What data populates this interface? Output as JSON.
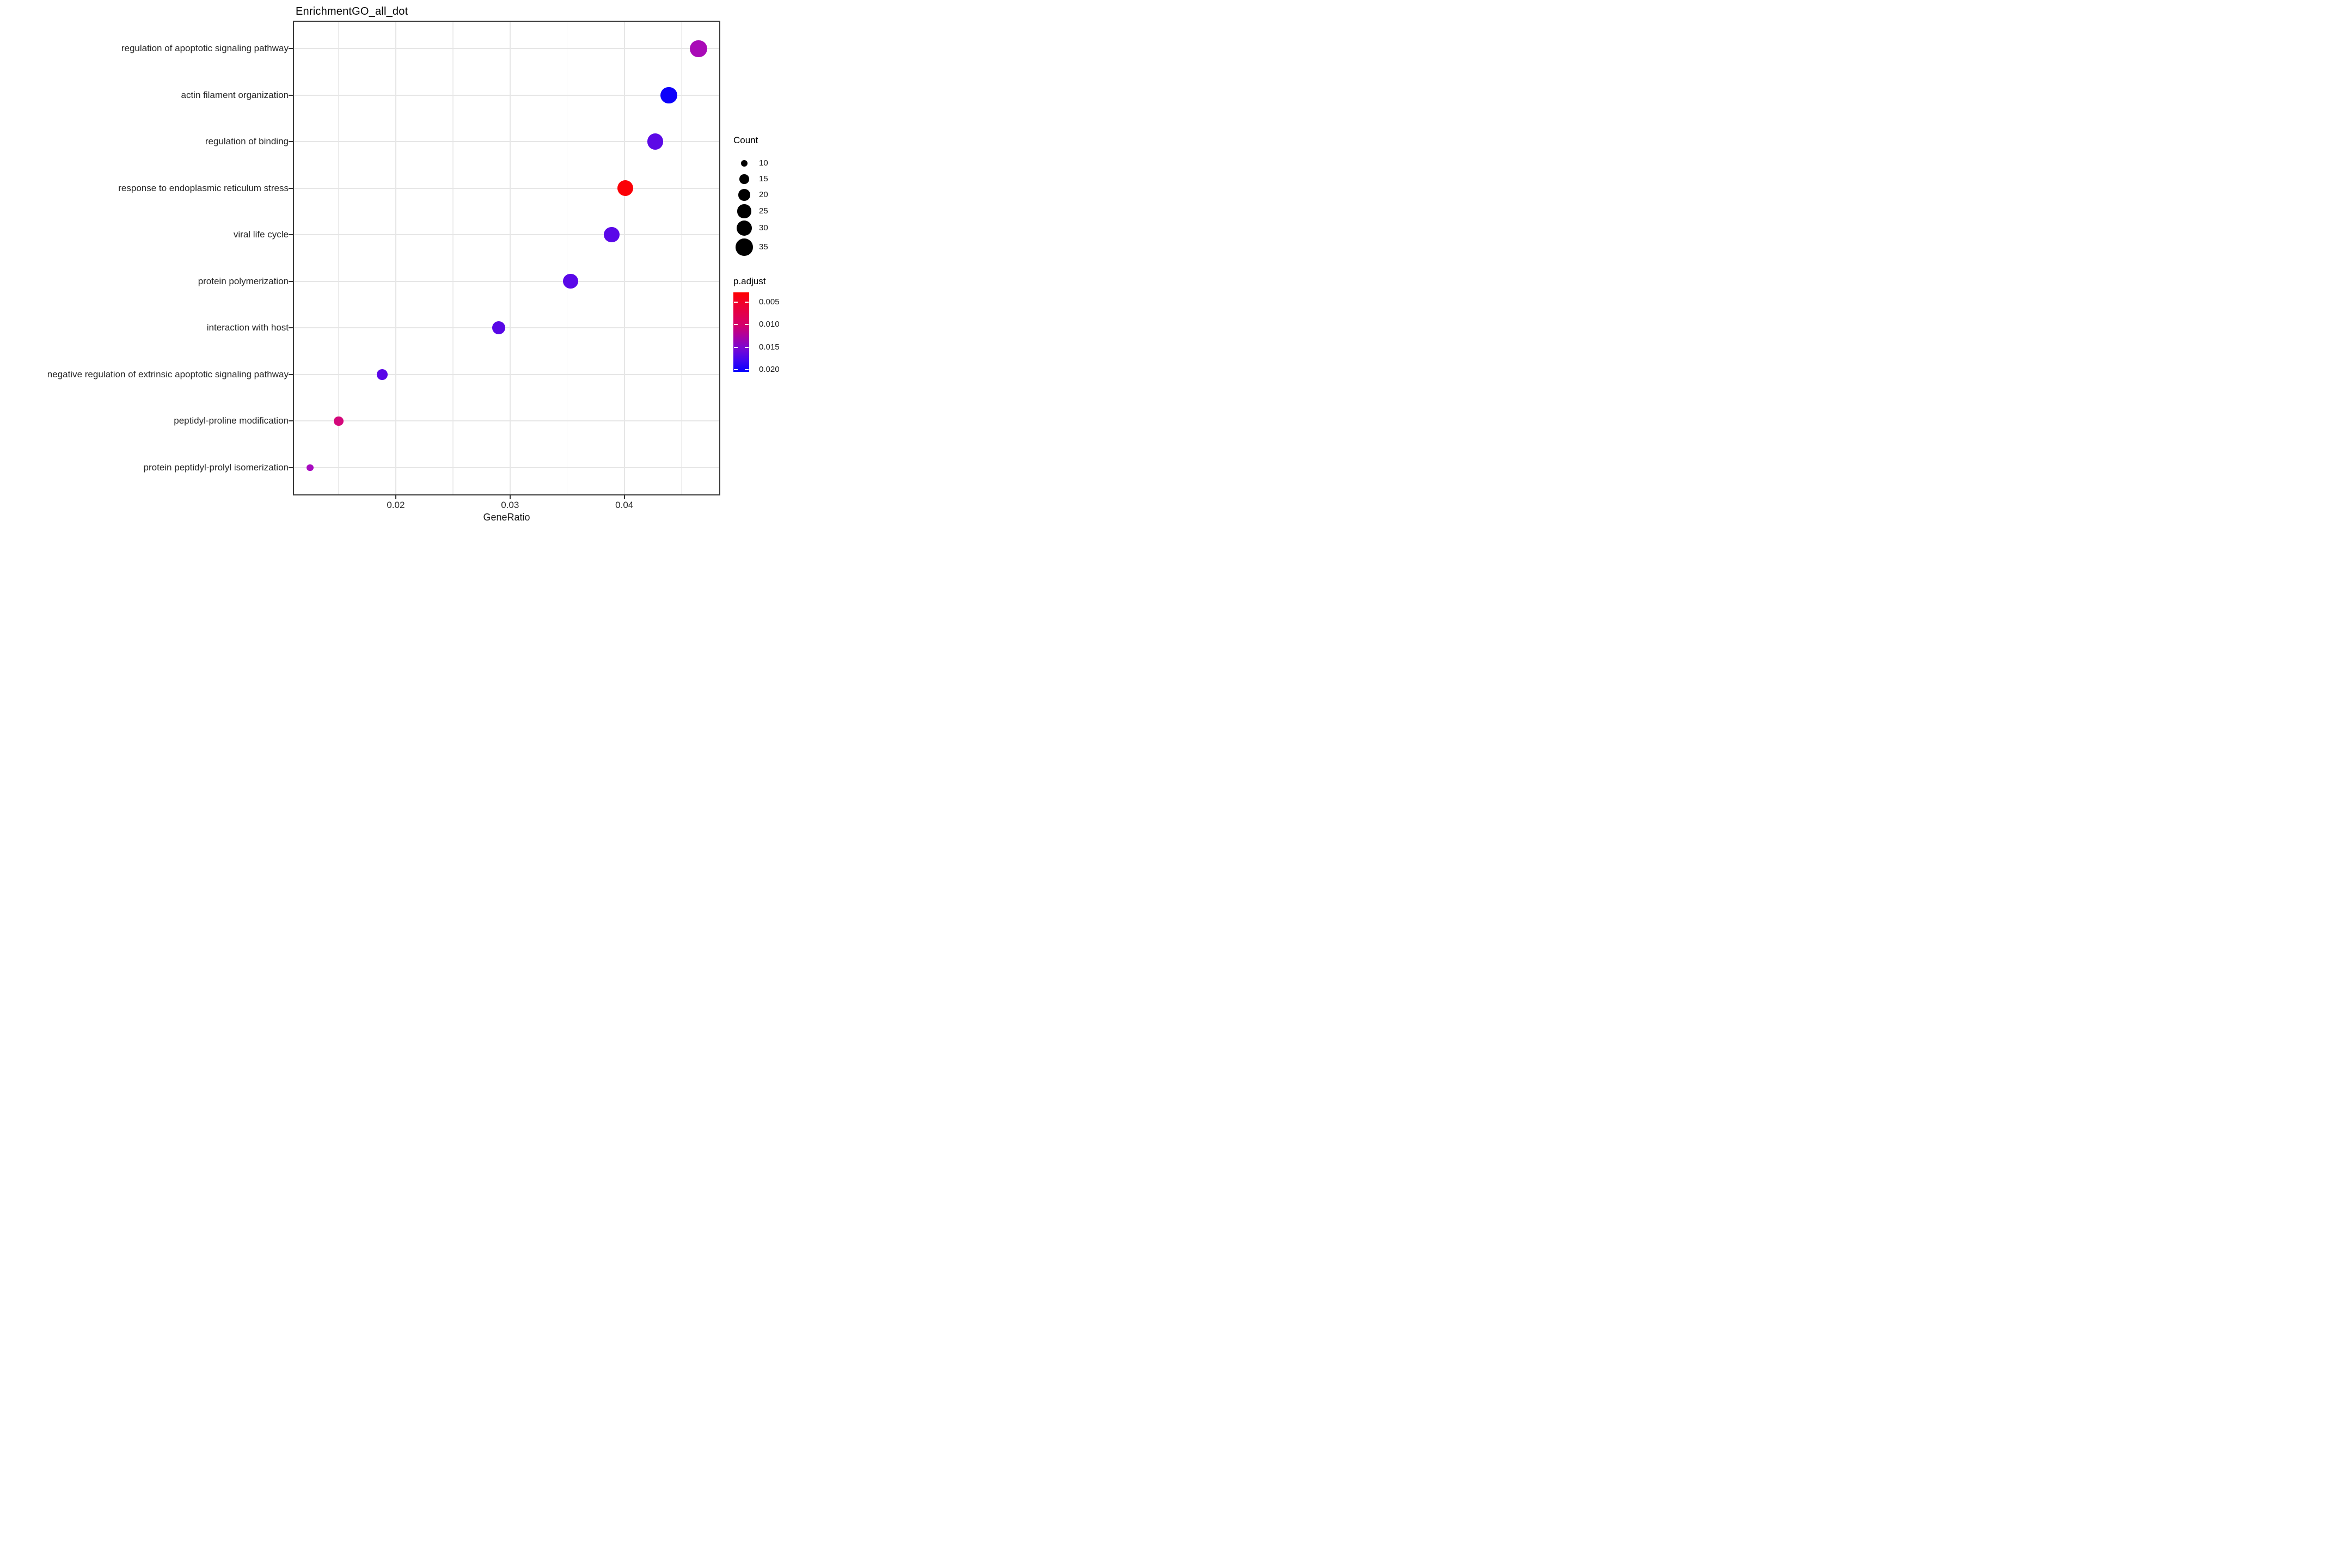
{
  "chart_data": {
    "type": "scatter",
    "title": "EnrichmentGO_all_dot",
    "xlabel": "GeneRatio",
    "ylabel": "",
    "x_ticks": [
      {
        "label": "0.02",
        "value": 0.02
      },
      {
        "label": "0.03",
        "value": 0.03
      },
      {
        "label": "0.04",
        "value": 0.04
      }
    ],
    "x_minor_gridlines": [
      0.015,
      0.025,
      0.035,
      0.045
    ],
    "xlim": [
      0.011,
      0.0484
    ],
    "grid": true,
    "legend_position": "right",
    "points": [
      {
        "term": "regulation of apoptotic signaling pathway",
        "gene_ratio": 0.0465,
        "count": 35,
        "p_adjust": 0.012,
        "color": "#A90BB7"
      },
      {
        "term": "actin filament organization",
        "gene_ratio": 0.0439,
        "count": 33,
        "p_adjust": 0.02,
        "color": "#0D00FB"
      },
      {
        "term": "regulation of binding",
        "gene_ratio": 0.0427,
        "count": 32,
        "p_adjust": 0.017,
        "color": "#5C09E6"
      },
      {
        "term": "response to endoplasmic reticulum stress",
        "gene_ratio": 0.0401,
        "count": 31,
        "p_adjust": 0.003,
        "color": "#FB0007"
      },
      {
        "term": "viral life cycle",
        "gene_ratio": 0.0389,
        "count": 30,
        "p_adjust": 0.017,
        "color": "#5A08E8"
      },
      {
        "term": "protein polymerization",
        "gene_ratio": 0.0353,
        "count": 28,
        "p_adjust": 0.017,
        "color": "#5A08E8"
      },
      {
        "term": "interaction with host",
        "gene_ratio": 0.029,
        "count": 24,
        "p_adjust": 0.017,
        "color": "#5807E6"
      },
      {
        "term": "negative regulation of extrinsic apoptotic signaling pathway",
        "gene_ratio": 0.0188,
        "count": 18,
        "p_adjust": 0.017,
        "color": "#5A06E8"
      },
      {
        "term": "peptidyl-proline modification",
        "gene_ratio": 0.015,
        "count": 15,
        "p_adjust": 0.01,
        "color": "#D4087B"
      },
      {
        "term": "protein peptidyl-prolyl isomerization",
        "gene_ratio": 0.0125,
        "count": 10,
        "p_adjust": 0.013,
        "color": "#A80BC0"
      }
    ],
    "legends": {
      "count": {
        "title": "Count",
        "values": [
          10,
          15,
          20,
          25,
          30,
          35
        ],
        "dot_color": "#000000"
      },
      "p_adjust": {
        "title": "p.adjust",
        "ticks": [
          {
            "label": "0.005",
            "value": 0.005
          },
          {
            "label": "0.010",
            "value": 0.01
          },
          {
            "label": "0.015",
            "value": 0.015
          },
          {
            "label": "0.020",
            "value": 0.02
          }
        ],
        "bar_range": [
          0.0028,
          0.0205
        ],
        "gradient": [
          {
            "at": 0.0,
            "color": "#FF0000"
          },
          {
            "at": 0.15,
            "color": "#EF0030"
          },
          {
            "at": 0.41,
            "color": "#D4006B"
          },
          {
            "at": 0.55,
            "color": "#AC00A0"
          },
          {
            "at": 0.7,
            "color": "#7A08D2"
          },
          {
            "at": 0.85,
            "color": "#4206F0"
          },
          {
            "at": 1.0,
            "color": "#0800FE"
          }
        ]
      }
    },
    "colors": {
      "grid_major": "#E6E6E6",
      "grid_minor": "#EDEDED",
      "panel_border": "#3A3A3A",
      "text": "#1A1A1A"
    }
  }
}
